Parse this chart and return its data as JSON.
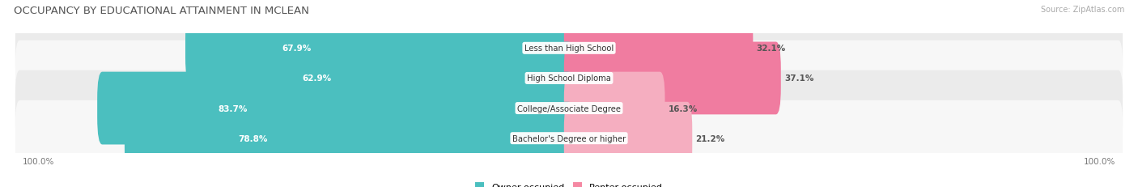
{
  "title": "OCCUPANCY BY EDUCATIONAL ATTAINMENT IN MCLEAN",
  "source": "Source: ZipAtlas.com",
  "categories": [
    "Less than High School",
    "High School Diploma",
    "College/Associate Degree",
    "Bachelor's Degree or higher"
  ],
  "owner_values": [
    67.9,
    62.9,
    83.7,
    78.8
  ],
  "renter_values": [
    32.1,
    37.1,
    16.3,
    21.2
  ],
  "owner_color": "#4bbfbf",
  "renter_color_rows": [
    "#f07ca0",
    "#f07ca0",
    "#f5aec0",
    "#f5aec0"
  ],
  "row_bg_colors": [
    "#ebebeb",
    "#f7f7f7",
    "#ebebeb",
    "#f7f7f7"
  ],
  "axis_label_left": "100.0%",
  "axis_label_right": "100.0%",
  "legend_owner": "Owner-occupied",
  "legend_renter": "Renter-occupied",
  "legend_renter_color": "#f589a3",
  "title_fontsize": 9.5,
  "bar_height": 0.62,
  "figsize": [
    14.06,
    2.32
  ]
}
